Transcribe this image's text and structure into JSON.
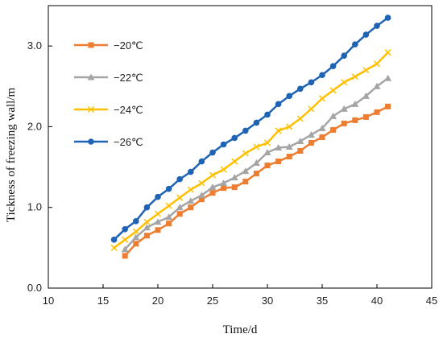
{
  "chart_data": {
    "type": "line",
    "xlabel": "Time/d",
    "ylabel": "Tickness of freezing wall/m",
    "xlim": [
      10,
      45
    ],
    "ylim": [
      0.0,
      3.5
    ],
    "x_ticks": [
      "10",
      "15",
      "20",
      "25",
      "30",
      "35",
      "40",
      "45"
    ],
    "y_ticks": [
      "0.0",
      "1.0",
      "2.0",
      "3.0"
    ],
    "grid": false,
    "legend_position": "top-left",
    "series": [
      {
        "name": "−20℃",
        "color": "#ED7D31",
        "marker": "square",
        "x": [
          17,
          18,
          19,
          20,
          21,
          22,
          23,
          24,
          25,
          26,
          27,
          28,
          29,
          30,
          31,
          32,
          33,
          34,
          35,
          36,
          37,
          38,
          39,
          40,
          41
        ],
        "y": [
          0.4,
          0.55,
          0.65,
          0.72,
          0.8,
          0.92,
          1.0,
          1.1,
          1.18,
          1.24,
          1.25,
          1.32,
          1.42,
          1.52,
          1.57,
          1.63,
          1.7,
          1.8,
          1.87,
          1.96,
          2.04,
          2.08,
          2.12,
          2.18,
          2.25
        ]
      },
      {
        "name": "−22℃",
        "color": "#A5A5A5",
        "marker": "triangle",
        "x": [
          17,
          18,
          19,
          20,
          21,
          22,
          23,
          24,
          25,
          26,
          27,
          28,
          29,
          30,
          31,
          32,
          33,
          34,
          35,
          36,
          37,
          38,
          39,
          40,
          41
        ],
        "y": [
          0.48,
          0.63,
          0.75,
          0.82,
          0.88,
          1.0,
          1.08,
          1.15,
          1.25,
          1.3,
          1.37,
          1.45,
          1.55,
          1.68,
          1.74,
          1.75,
          1.82,
          1.9,
          1.98,
          2.13,
          2.22,
          2.28,
          2.38,
          2.5,
          2.6
        ]
      },
      {
        "name": "−24℃",
        "color": "#FFC000",
        "marker": "x",
        "x": [
          16,
          17,
          18,
          19,
          20,
          21,
          22,
          23,
          24,
          25,
          26,
          27,
          28,
          29,
          30,
          31,
          32,
          33,
          34,
          35,
          36,
          37,
          38,
          39,
          40,
          41
        ],
        "y": [
          0.5,
          0.6,
          0.7,
          0.82,
          0.92,
          1.02,
          1.12,
          1.22,
          1.3,
          1.4,
          1.47,
          1.57,
          1.67,
          1.75,
          1.8,
          1.95,
          2.0,
          2.1,
          2.22,
          2.35,
          2.45,
          2.55,
          2.62,
          2.7,
          2.78,
          2.92
        ]
      },
      {
        "name": "−26℃",
        "color": "#1F64B4",
        "marker": "circle",
        "x": [
          16,
          17,
          18,
          19,
          20,
          21,
          22,
          23,
          24,
          25,
          26,
          27,
          28,
          29,
          30,
          31,
          32,
          33,
          34,
          35,
          36,
          37,
          38,
          39,
          40,
          41
        ],
        "y": [
          0.6,
          0.73,
          0.83,
          1.0,
          1.13,
          1.23,
          1.35,
          1.44,
          1.57,
          1.68,
          1.78,
          1.86,
          1.95,
          2.05,
          2.15,
          2.28,
          2.38,
          2.47,
          2.55,
          2.64,
          2.75,
          2.88,
          3.02,
          3.14,
          3.25,
          3.35
        ]
      }
    ]
  }
}
